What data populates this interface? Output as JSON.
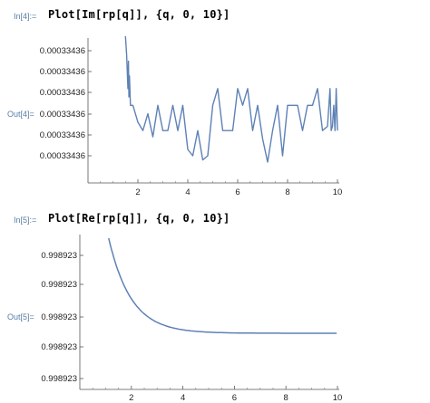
{
  "cells": [
    {
      "in_label": "In[4]:=",
      "input": "Plot[Im[rp[q]], {q, 0, 10}]",
      "out_label": "Out[4]=",
      "plot": {
        "type": "line",
        "x_ticks": [
          "2",
          "4",
          "6",
          "8",
          "10"
        ],
        "y_ticks": [
          "0.00033436",
          "0.00033436",
          "0.00033436",
          "0.00033436",
          "0.00033436",
          "0.00033436"
        ],
        "line_color": "#5e81b5",
        "x": [
          1.5,
          1.55,
          1.6,
          1.62,
          1.64,
          1.66,
          1.7,
          1.8,
          2,
          2.2,
          2.4,
          2.6,
          2.8,
          3,
          3.2,
          3.4,
          3.6,
          3.8,
          4,
          4.2,
          4.4,
          4.6,
          4.8,
          5,
          5.2,
          5.4,
          5.6,
          5.8,
          6,
          6.2,
          6.4,
          6.6,
          6.8,
          7,
          7.2,
          7.4,
          7.6,
          7.8,
          8,
          8.2,
          8.4,
          8.6,
          8.8,
          9,
          9.2,
          9.4,
          9.6,
          9.7,
          9.75,
          9.8,
          9.85,
          9.9,
          9.95,
          10
        ],
        "y": [
          6.2,
          4.8,
          3.2,
          4.5,
          2.8,
          3.8,
          2.4,
          2.4,
          1.6,
          1.2,
          2.0,
          0.9,
          2.4,
          1.2,
          1.2,
          2.4,
          1.2,
          2.4,
          0.3,
          0.0,
          1.2,
          -0.2,
          0.0,
          2.4,
          3.2,
          1.2,
          1.2,
          1.2,
          3.2,
          2.4,
          3.2,
          1.2,
          2.4,
          0.8,
          -0.3,
          1.2,
          2.4,
          0.0,
          2.4,
          2.4,
          2.4,
          1.2,
          2.4,
          2.4,
          3.2,
          1.2,
          1.4,
          3.2,
          1.2,
          1.4,
          2.4,
          1.2,
          3.2,
          1.2
        ]
      }
    },
    {
      "in_label": "In[5]:=",
      "input": "Plot[Re[rp[q]], {q, 0, 10}]",
      "out_label": "Out[5]=",
      "plot": {
        "type": "line",
        "x_ticks": [
          "2",
          "4",
          "6",
          "8",
          "10"
        ],
        "y_ticks": [
          "0.998923",
          "0.998923",
          "0.998923",
          "0.998923",
          "0.998923"
        ],
        "line_color": "#5e81b5",
        "curve": "decaying"
      }
    }
  ]
}
